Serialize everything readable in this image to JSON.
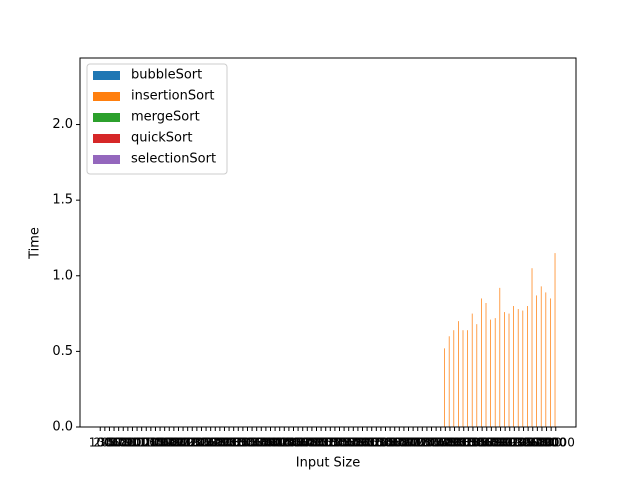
{
  "chart_data": {
    "type": "bar",
    "xlabel": "Input Size",
    "ylabel": "Time",
    "categories": [
      100,
      200,
      300,
      400,
      500,
      600,
      700,
      800,
      900,
      1000,
      1100,
      1200,
      1300,
      1400,
      1500,
      1600,
      1700,
      1800,
      1900,
      2000,
      2100,
      2200,
      2300,
      2400,
      2500,
      2600,
      2700,
      2800,
      2900,
      3000,
      3100,
      3200,
      3300,
      3400,
      3500,
      3600,
      3700,
      3800,
      3900,
      4000,
      4100,
      4200,
      4300,
      4400,
      4500,
      4600,
      4700,
      4800,
      4900,
      5000,
      5100,
      5200,
      5300,
      5400,
      5500,
      5600,
      5700,
      5800,
      5900,
      6000,
      6100,
      6200,
      6300,
      6400,
      6500,
      6600,
      6700,
      6800,
      6900,
      7000,
      7100,
      7200,
      7300,
      7400,
      7500,
      7600,
      7700,
      7800,
      7900,
      8000,
      8100,
      8200,
      8300,
      8400,
      8500,
      8600,
      8700,
      8800,
      8900,
      9000,
      9100,
      9200,
      9300,
      9400,
      9500,
      9600,
      9700,
      9800,
      9900,
      10000
    ],
    "series": [
      {
        "name": "bubbleSort",
        "color": "#1f77b4",
        "values": [
          0,
          0,
          0,
          0,
          0,
          0,
          0,
          0,
          0,
          0,
          0,
          0,
          0,
          0,
          0,
          0,
          0,
          0,
          0,
          0,
          0,
          0,
          0,
          0,
          0,
          0,
          0,
          0,
          0,
          0,
          0,
          0,
          0,
          0,
          0,
          0,
          0,
          0,
          0,
          0,
          0,
          0,
          0,
          0,
          0,
          0,
          0,
          0,
          0,
          0,
          0,
          0,
          0,
          0,
          0,
          0,
          0,
          0,
          0,
          0,
          0,
          0,
          0,
          0,
          0,
          0,
          0,
          0,
          0,
          0,
          0,
          0,
          0,
          0,
          0,
          0,
          0,
          0,
          0,
          0,
          0,
          0,
          0,
          0,
          0,
          0,
          0,
          0,
          0,
          0,
          0,
          0,
          0,
          0,
          0,
          0,
          0,
          0,
          0,
          0
        ]
      },
      {
        "name": "insertionSort",
        "color": "#ff7f0e",
        "values": [
          0,
          0,
          0,
          0,
          0,
          0,
          0,
          0,
          0,
          0,
          0,
          0,
          0,
          0,
          0,
          0,
          0,
          0,
          0,
          0,
          0,
          0,
          0,
          0,
          0,
          0,
          0,
          0,
          0,
          0,
          0,
          0,
          0,
          0,
          0,
          0,
          0,
          0,
          0,
          0,
          0,
          0,
          0,
          0,
          0,
          0,
          0,
          0,
          0,
          0,
          0,
          0,
          0,
          0,
          0,
          0,
          0,
          0,
          0,
          0,
          0,
          0,
          0,
          0,
          0,
          0,
          0,
          0,
          0,
          0,
          0,
          0,
          0,
          0,
          0,
          0.52,
          0.6,
          0.64,
          0.7,
          0.64,
          0.64,
          0.75,
          0.68,
          0.85,
          0.82,
          0.71,
          0.72,
          0.92,
          0.76,
          0.75,
          0.8,
          0.78,
          0.77,
          0.8,
          1.05,
          0.87,
          0.93,
          0.89,
          0.85,
          1.15
        ]
      },
      {
        "name": "mergeSort",
        "color": "#2ca02c",
        "values": [
          0,
          0,
          0,
          0,
          0,
          0,
          0,
          0,
          0,
          0,
          0,
          0,
          0,
          0,
          0,
          0,
          0,
          0,
          0,
          0,
          0,
          0,
          0,
          0,
          0,
          0,
          0,
          0,
          0,
          0,
          0,
          0,
          0,
          0,
          0,
          0,
          0,
          0,
          0,
          0,
          0,
          0,
          0,
          0,
          0,
          0,
          0,
          0,
          0,
          0,
          0,
          0,
          0,
          0,
          0,
          0,
          0,
          0,
          0,
          0,
          0,
          0,
          0,
          0,
          0,
          0,
          0,
          0,
          0,
          0,
          0,
          0,
          0,
          0,
          0,
          0,
          0,
          0,
          0,
          0,
          0,
          0,
          0,
          0,
          0,
          0,
          0,
          0,
          0,
          0,
          0,
          0,
          0,
          0,
          0,
          0,
          0,
          0,
          0,
          0
        ]
      },
      {
        "name": "quickSort",
        "color": "#d62728",
        "values": [
          0,
          0,
          0,
          0,
          0,
          0,
          0,
          0,
          0,
          0,
          0,
          0,
          0,
          0,
          0,
          0,
          0,
          0,
          0,
          0,
          0,
          0,
          0,
          0,
          0,
          0,
          0,
          0,
          0,
          0,
          0,
          0,
          0,
          0,
          0,
          0,
          0,
          0,
          0,
          0,
          0,
          0,
          0,
          0,
          0,
          0,
          0,
          0,
          0,
          0,
          0,
          0,
          0,
          0,
          0,
          0,
          0,
          0,
          0,
          0,
          0,
          0,
          0,
          0,
          0,
          0,
          0,
          0,
          0,
          0,
          0,
          0,
          0,
          0,
          0,
          0,
          0,
          0,
          0,
          0,
          0,
          0,
          0,
          0,
          0,
          0,
          0,
          0,
          0,
          0,
          0,
          0,
          0,
          0,
          0,
          0,
          0,
          0,
          0,
          0
        ]
      },
      {
        "name": "selectionSort",
        "color": "#9467bd",
        "values": [
          0,
          0,
          0,
          0,
          0,
          0,
          0,
          0,
          0,
          0,
          0,
          0,
          0,
          0,
          0,
          0,
          0,
          0,
          0,
          0,
          0,
          0,
          0,
          0,
          0,
          0,
          0,
          0,
          0,
          0,
          0,
          0,
          0,
          0,
          0,
          0,
          0,
          0,
          0,
          0,
          0,
          0,
          0,
          0,
          0,
          0,
          0,
          0,
          0,
          0,
          0,
          0,
          0,
          0,
          0,
          0,
          0,
          0,
          0,
          0,
          0,
          0,
          0,
          0,
          0,
          0,
          0,
          0,
          0,
          0,
          0,
          0,
          0,
          0,
          0,
          0,
          0,
          0,
          0,
          0,
          0,
          0,
          0,
          0,
          0,
          0,
          0,
          0,
          0,
          0,
          0,
          0,
          0,
          0,
          0,
          0,
          0,
          0,
          0,
          0
        ]
      }
    ],
    "ylim": [
      0,
      2.44
    ],
    "yticks": [
      {
        "value": 0,
        "label": "0.0"
      },
      {
        "value": 0.5,
        "label": "0.5"
      },
      {
        "value": 1,
        "label": "1.0"
      },
      {
        "value": 1.5,
        "label": "1.5"
      },
      {
        "value": 2,
        "label": "2.0"
      }
    ],
    "legend": "upper left"
  }
}
